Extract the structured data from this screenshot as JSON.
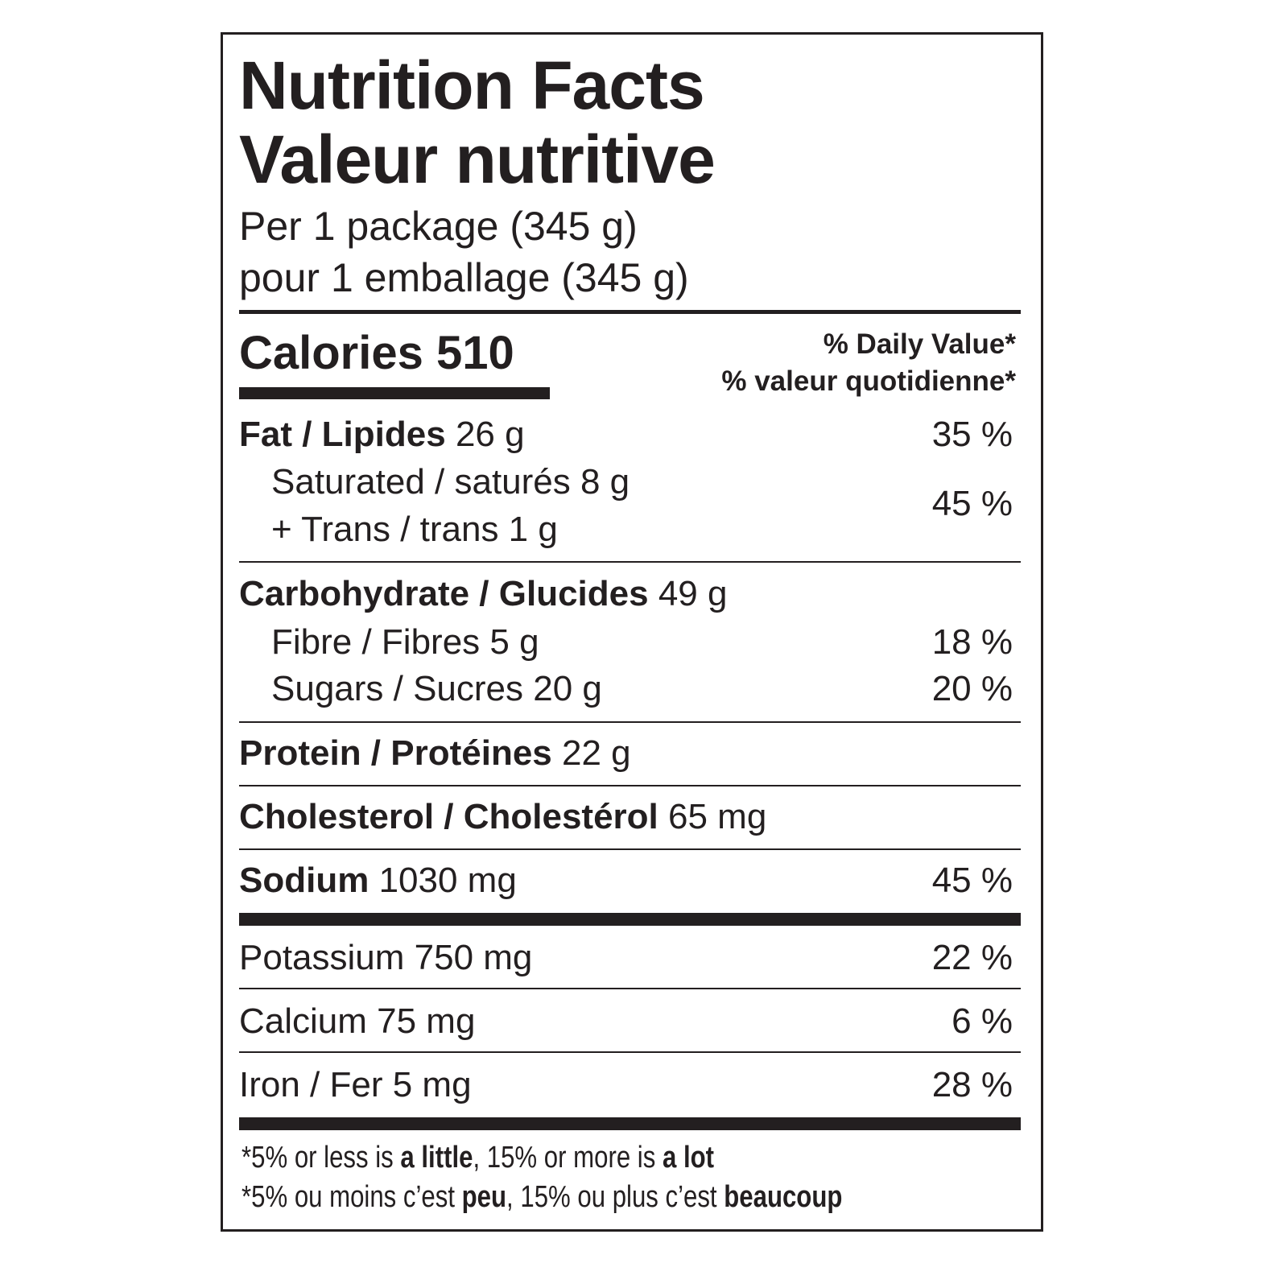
{
  "title_en": "Nutrition Facts",
  "title_fr": "Valeur nutritive",
  "serving_en": "Per 1 package (345 g)",
  "serving_fr": "pour 1 emballage (345 g)",
  "calories": {
    "label": "Calories",
    "value": "510"
  },
  "daily_value_header_en": "% Daily Value*",
  "daily_value_header_fr": "% valeur quotidienne*",
  "nutrients": {
    "fat": {
      "label": "Fat / Lipides",
      "amount": "26 g",
      "dv": "35 %"
    },
    "saturated": {
      "label": "Saturated / saturés 8 g"
    },
    "trans": {
      "label": "+ Trans / trans 1 g",
      "dv": "45 %"
    },
    "carb": {
      "label": "Carbohydrate / Glucides",
      "amount": "49 g"
    },
    "fibre": {
      "label": "Fibre / Fibres 5 g",
      "dv": "18 %"
    },
    "sugars": {
      "label": "Sugars / Sucres 20 g",
      "dv": "20 %"
    },
    "protein": {
      "label": "Protein / Protéines",
      "amount": "22 g"
    },
    "cholesterol": {
      "label": "Cholesterol / Cholestérol",
      "amount": "65 mg"
    },
    "sodium": {
      "label": "Sodium",
      "amount": "1030 mg",
      "dv": "45 %"
    },
    "potassium": {
      "label": "Potassium 750 mg",
      "dv": "22 %"
    },
    "calcium": {
      "label": "Calcium 75 mg",
      "dv": "6 %"
    },
    "iron": {
      "label": "Iron / Fer 5 mg",
      "dv": "28 %"
    }
  },
  "footnote_en": {
    "a": "*5% or less is ",
    "b": "a little",
    "c": ", 15% or more is ",
    "d": "a lot"
  },
  "footnote_fr": {
    "a": "*5% ou moins c’est ",
    "b": "peu",
    "c": ", 15% ou plus c’est ",
    "d": "beaucoup"
  },
  "colors": {
    "ink": "#231f20",
    "background": "#ffffff"
  }
}
